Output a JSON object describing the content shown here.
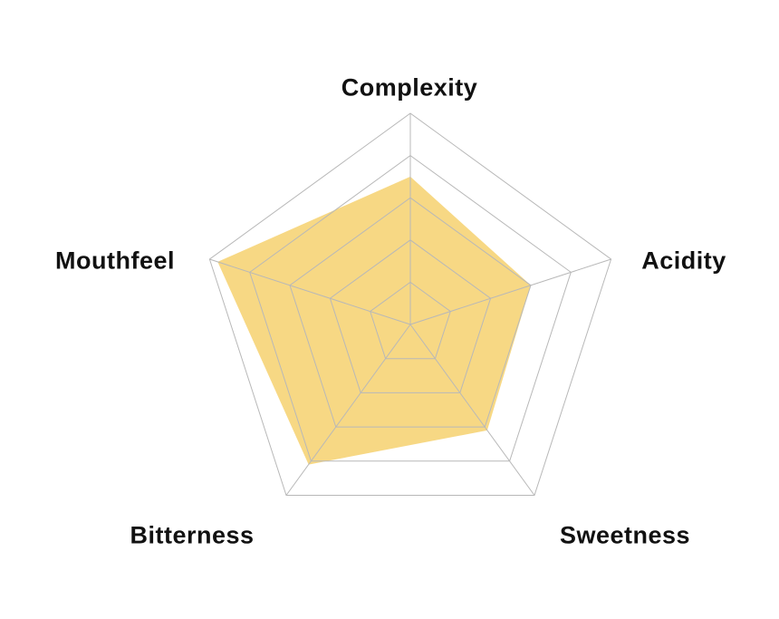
{
  "chart_data": {
    "type": "radar",
    "title": "",
    "categories": [
      "Complexity",
      "Acidity",
      "Sweetness",
      "Bitterness",
      "Mouthfeel"
    ],
    "values": [
      3.5,
      3.0,
      3.1,
      4.1,
      4.8
    ],
    "max": 5,
    "grid_levels": [
      1,
      2,
      3,
      4,
      5
    ],
    "grid": "on",
    "legend": "none",
    "fill_color": "#F6D57A",
    "fill_opacity": 0.92,
    "grid_color": "#b8b8b8",
    "background": "#ffffff"
  }
}
